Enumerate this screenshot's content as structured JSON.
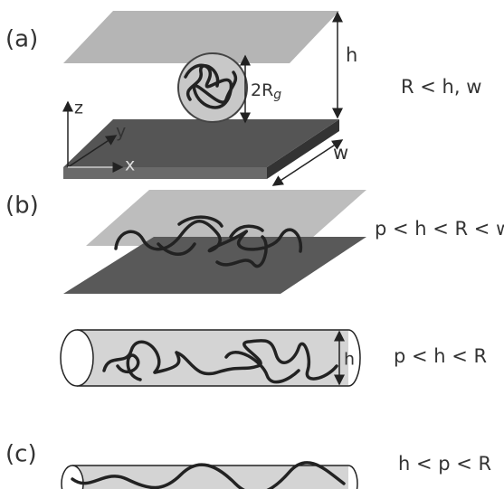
{
  "panel_a": {
    "label": "(a)",
    "height_label": "h",
    "diameter_label": {
      "text": "2R",
      "subscript": "g"
    },
    "condition": "R < h, w",
    "axes": {
      "z": "z",
      "y": "y",
      "x": "x"
    },
    "width_label": "w"
  },
  "panel_b": {
    "label": "(b)",
    "slit": {
      "condition": "p < h < R < w"
    },
    "tube": {
      "height_label": "h",
      "condition": "p < h < R"
    }
  },
  "panel_c": {
    "label": "(c)",
    "condition": "h < p < R"
  }
}
